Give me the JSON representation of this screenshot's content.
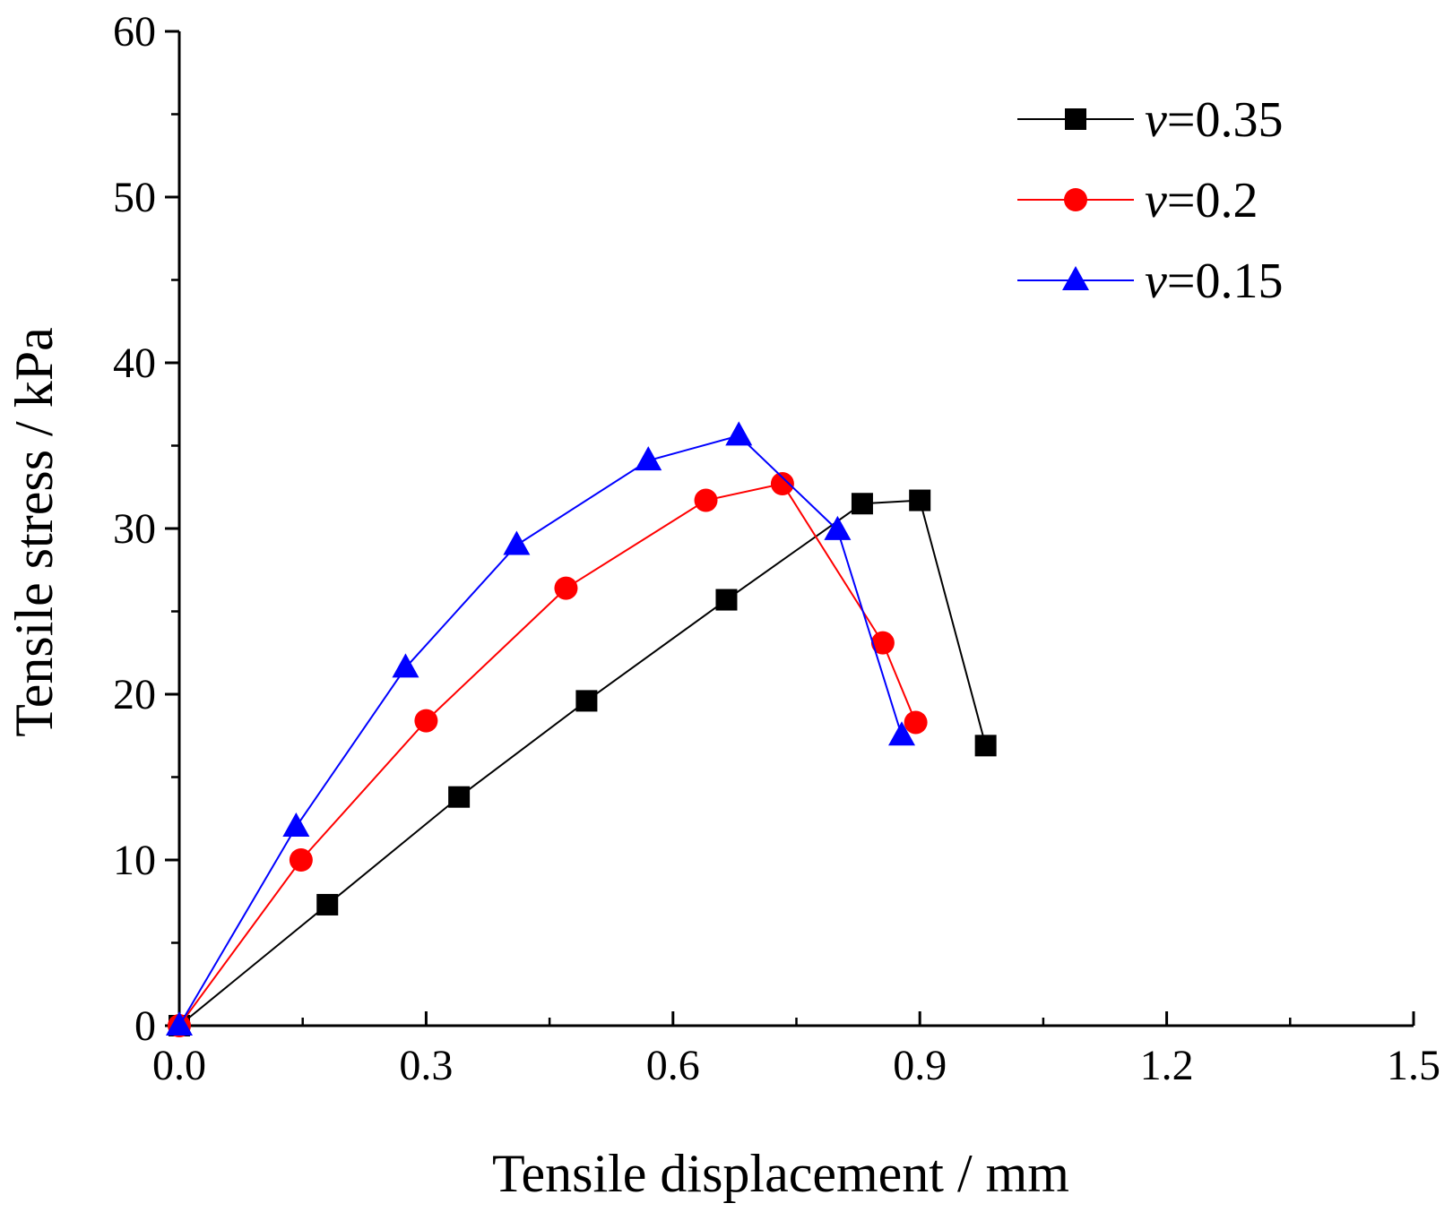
{
  "chart_data": {
    "type": "line",
    "title": "",
    "xlabel": "Tensile displacement / mm",
    "ylabel": "Tensile stress / kPa",
    "xlim": [
      0.0,
      1.5
    ],
    "ylim": [
      0,
      60
    ],
    "x_major_ticks": [
      0.0,
      0.3,
      0.6,
      0.9,
      1.2,
      1.5
    ],
    "x_tick_labels": [
      "0.0",
      "0.3",
      "0.6",
      "0.9",
      "1.2",
      "1.5"
    ],
    "x_minor_ticks": [
      0.15,
      0.45,
      0.75,
      1.05,
      1.35
    ],
    "y_major_ticks": [
      0,
      10,
      20,
      30,
      40,
      50,
      60
    ],
    "y_tick_labels": [
      "0",
      "10",
      "20",
      "30",
      "40",
      "50",
      "60"
    ],
    "y_minor_ticks": [
      5,
      15,
      25,
      35,
      45,
      55
    ],
    "grid": false,
    "legend_position": "top-right",
    "series": [
      {
        "name": "v=0.35",
        "legend_var": "v",
        "legend_value": "=0.35",
        "color": "#000000",
        "marker": "square",
        "x": [
          0.0,
          0.18,
          0.34,
          0.495,
          0.665,
          0.83,
          0.9,
          0.98
        ],
        "y": [
          0.0,
          7.3,
          13.8,
          19.6,
          25.7,
          31.5,
          31.7,
          16.9
        ]
      },
      {
        "name": "v=0.2",
        "legend_var": "v",
        "legend_value": "=0.2",
        "color": "#ff0000",
        "marker": "circle",
        "x": [
          0.0,
          0.148,
          0.3,
          0.47,
          0.64,
          0.733,
          0.855,
          0.895
        ],
        "y": [
          0.0,
          10.0,
          18.4,
          26.4,
          31.7,
          32.7,
          23.1,
          18.3
        ]
      },
      {
        "name": "v=0.15",
        "legend_var": "v",
        "legend_value": "=0.15",
        "color": "#0000ff",
        "marker": "triangle",
        "x": [
          0.0,
          0.142,
          0.275,
          0.41,
          0.57,
          0.68,
          0.8,
          0.878
        ],
        "y": [
          0.0,
          12.0,
          21.6,
          29.0,
          34.1,
          35.6,
          29.9,
          17.5
        ]
      }
    ]
  }
}
